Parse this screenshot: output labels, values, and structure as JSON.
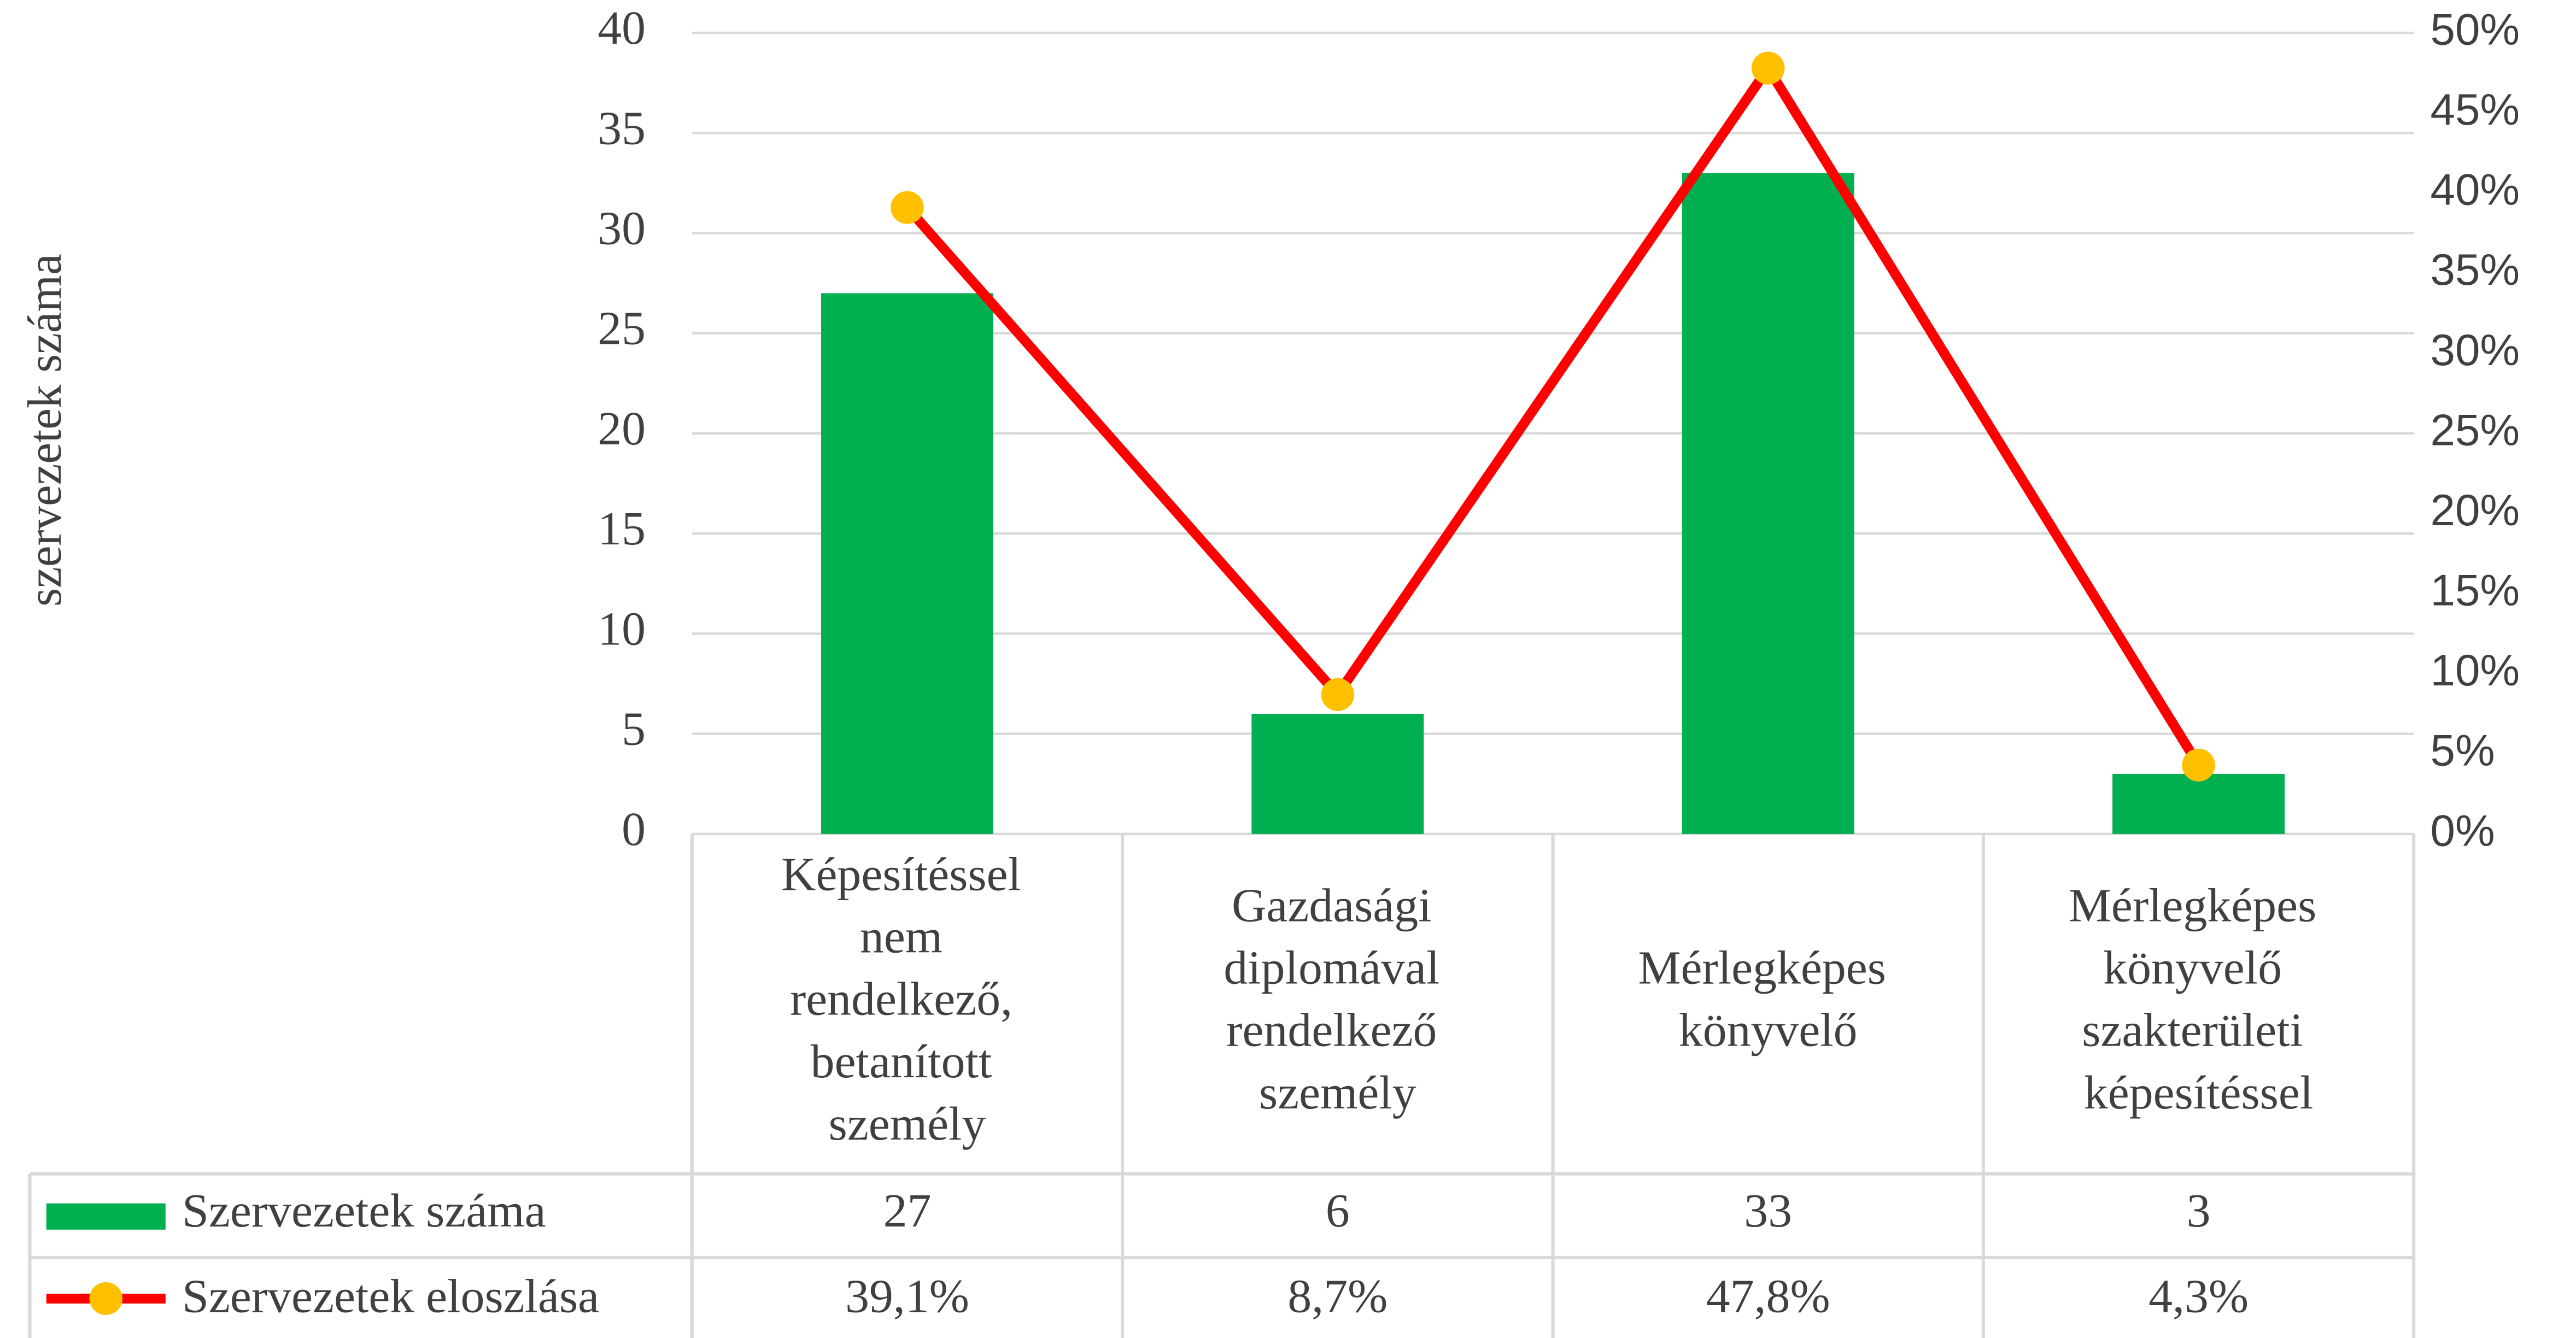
{
  "chart_data": {
    "type": "bar_line",
    "y_axis_label": "szervezetek száma",
    "categories": [
      "Képesítéssel nem rendelkező, betanított személy",
      "Gazdasági diplomával rendelkező személy",
      "Mérlegképes könyvelő",
      "Mérlegképes könyvelő szakterületi képesítéssel"
    ],
    "series": [
      {
        "name": "Szervezetek száma",
        "type": "bar",
        "color": "#00b050",
        "values": [
          27,
          6,
          33,
          3
        ]
      },
      {
        "name": "Szervezetek eloszlása",
        "type": "line",
        "axis": "y2",
        "color": "#ff0000",
        "marker_color": "#ffc000",
        "values": [
          39.1,
          8.7,
          47.8,
          4.3
        ],
        "value_labels": [
          "39,1%",
          "8,7%",
          "47,8%",
          "4,3%"
        ]
      }
    ],
    "ylim": [
      0,
      40
    ],
    "yticks": [
      0,
      5,
      10,
      15,
      20,
      25,
      30,
      35,
      40
    ],
    "y2lim": [
      0,
      50
    ],
    "y2ticks": [
      {
        "value": 0,
        "label": "0%"
      },
      {
        "value": 5,
        "label": "5%"
      },
      {
        "value": 10,
        "label": "10%"
      },
      {
        "value": 15,
        "label": "15%"
      },
      {
        "value": 20,
        "label": "20%"
      },
      {
        "value": 25,
        "label": "25%"
      },
      {
        "value": 30,
        "label": "30%"
      },
      {
        "value": 35,
        "label": "35%"
      },
      {
        "value": 40,
        "label": "40%"
      },
      {
        "value": 45,
        "label": "45%"
      },
      {
        "value": 50,
        "label": "50%"
      }
    ],
    "grid": true,
    "data_table": true
  }
}
